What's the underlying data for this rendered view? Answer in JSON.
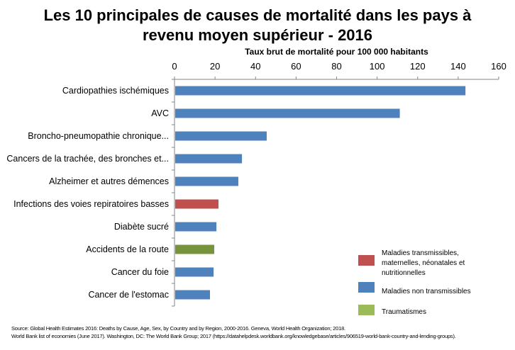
{
  "chart_data": {
    "type": "bar",
    "orientation": "horizontal",
    "title": "Les 10 principales de causes de mortalité dans les pays à revenu moyen supérieur - 2016",
    "title_lines": [
      "Les 10 principales de causes de mortalité dans les pays à",
      "revenu moyen supérieur - 2016"
    ],
    "xlabel": "Taux brut de mortalité pour 100 000 habitants",
    "xlim": [
      0,
      160
    ],
    "xticks": [
      "0",
      "20",
      "40",
      "60",
      "80",
      "100",
      "120",
      "140",
      "160"
    ],
    "grid": false,
    "axis_position": "top",
    "legend_placement": "bottom-right",
    "categories": [
      "Cardiopathies ischémiques",
      "AVC",
      "Broncho-pneumopathie chronique...",
      "Cancers de la trachée, des bronches et...",
      "Alzheimer et autres démences",
      "Infections des voies repiratoires basses",
      "Diabète sucré",
      "Accidents de la route",
      "Cancer du foie",
      "Cancer de l'estomac"
    ],
    "values": [
      143.6,
      111.2,
      45.5,
      33.3,
      31.5,
      21.7,
      20.7,
      19.6,
      19.3,
      17.5
    ],
    "groups": [
      1,
      1,
      1,
      1,
      1,
      0,
      1,
      2,
      1,
      1
    ],
    "legend": [
      {
        "name": "Maladies transmissibles, maternelles, néonatales et nutritionnelles",
        "lines": [
          "Maladies transmissibles,",
          "maternelles, néonatales et",
          "nutritionnelles"
        ],
        "color": "#c0504d"
      },
      {
        "name": "Maladies non transmissibles",
        "lines": [
          "Maladies non transmissibles"
        ],
        "color": "#4f81bd"
      },
      {
        "name": "Traumatismes",
        "lines": [
          "Traumatismes"
        ],
        "color": "#9bbb59"
      }
    ],
    "bar_colors": [
      "#c0504d",
      "#4f81bd",
      "#77933c"
    ]
  },
  "source": {
    "line1": "Source: Global Health Estimates 2016: Deaths by Cause, Age, Sex, by Country and by Region, 2000-2016. Geneva, World Health Organization; 2018.",
    "line2": "World Bank list of economies (June 2017). Washington, DC: The World Bank Group; 2017 (https://datahelpdesk.worldbank.org/knowledgebase/articles/906519-world-bank-country-and-lending-groups)."
  }
}
